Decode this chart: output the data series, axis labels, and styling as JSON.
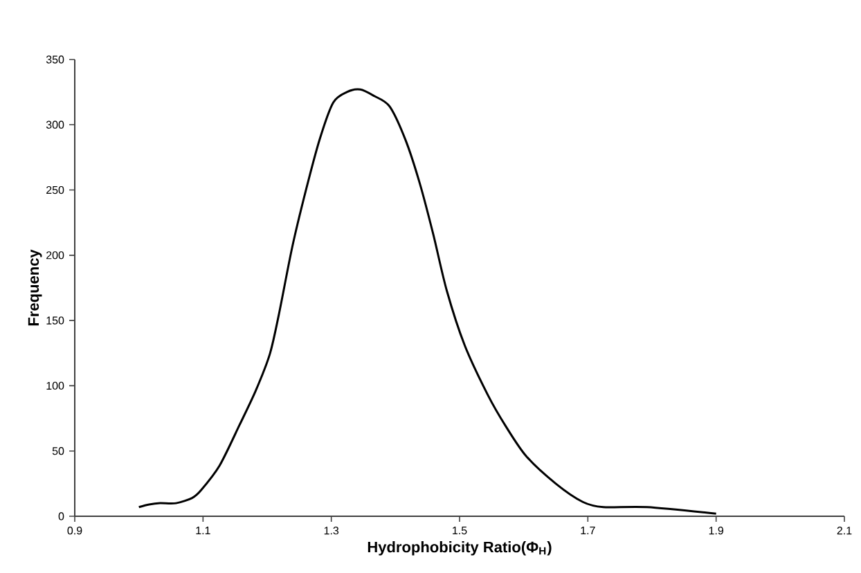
{
  "chart_data": {
    "type": "line",
    "xlabel": "Hydrophobicity Ratio(Φ$_{H}$)",
    "ylabel": "Frequency",
    "x": [
      1.0,
      1.016,
      1.033,
      1.058,
      1.083,
      1.097,
      1.126,
      1.157,
      1.182,
      1.204,
      1.218,
      1.239,
      1.26,
      1.282,
      1.303,
      1.324,
      1.345,
      1.367,
      1.391,
      1.416,
      1.438,
      1.459,
      1.48,
      1.508,
      1.544,
      1.572,
      1.604,
      1.65,
      1.692,
      1.724,
      1.792,
      1.9
    ],
    "values": [
      7,
      9,
      10,
      10,
      14,
      20,
      39,
      70,
      96,
      124,
      154,
      206,
      249,
      289,
      317,
      325,
      327,
      322,
      314,
      288,
      255,
      216,
      173,
      131,
      93,
      69,
      46,
      25,
      11,
      7,
      7,
      2
    ],
    "color": "#000000",
    "xlim": [
      0.9,
      2.1
    ],
    "xticks": [
      0.9,
      1.1,
      1.3,
      1.5,
      1.7,
      1.9,
      2.1
    ],
    "ylim": [
      0,
      350
    ],
    "yticks": [
      0,
      50,
      100,
      150,
      200,
      250,
      300,
      350
    ],
    "grid": false,
    "marker": "none",
    "line_style": "solid"
  }
}
